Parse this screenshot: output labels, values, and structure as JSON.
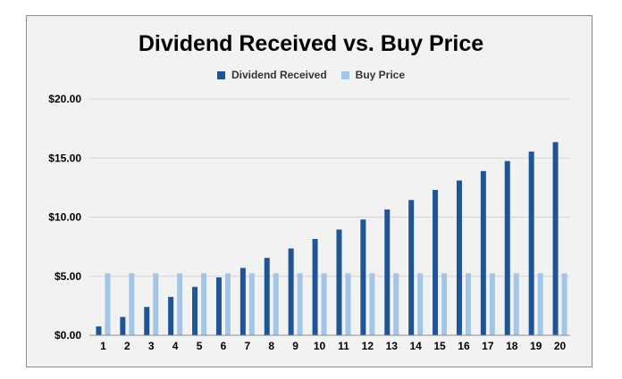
{
  "chart_data": {
    "type": "bar",
    "title": "Dividend Received vs. Buy Price",
    "xlabel": "",
    "ylabel": "",
    "categories": [
      "1",
      "2",
      "3",
      "4",
      "5",
      "6",
      "7",
      "8",
      "9",
      "10",
      "11",
      "12",
      "13",
      "14",
      "15",
      "16",
      "17",
      "18",
      "19",
      "20"
    ],
    "series": [
      {
        "name": "Dividend Received",
        "color": "#1f5597",
        "values": [
          0.75,
          1.55,
          2.4,
          3.25,
          4.1,
          4.9,
          5.7,
          6.55,
          7.35,
          8.15,
          8.95,
          9.8,
          10.65,
          11.45,
          12.3,
          13.1,
          13.9,
          14.75,
          15.55,
          16.35
        ]
      },
      {
        "name": "Buy Price",
        "color": "#a4c6e6",
        "values": [
          5.25,
          5.25,
          5.25,
          5.25,
          5.25,
          5.25,
          5.25,
          5.25,
          5.25,
          5.25,
          5.25,
          5.25,
          5.25,
          5.25,
          5.25,
          5.25,
          5.25,
          5.25,
          5.25,
          5.25
        ]
      }
    ],
    "ylim": [
      0,
      20
    ],
    "yticks": [
      0,
      5,
      10,
      15,
      20
    ],
    "ytick_labels": [
      "$0.00",
      "$5.00",
      "$10.00",
      "$15.00",
      "$20.00"
    ],
    "grid": true,
    "legend_position": "top-center"
  }
}
